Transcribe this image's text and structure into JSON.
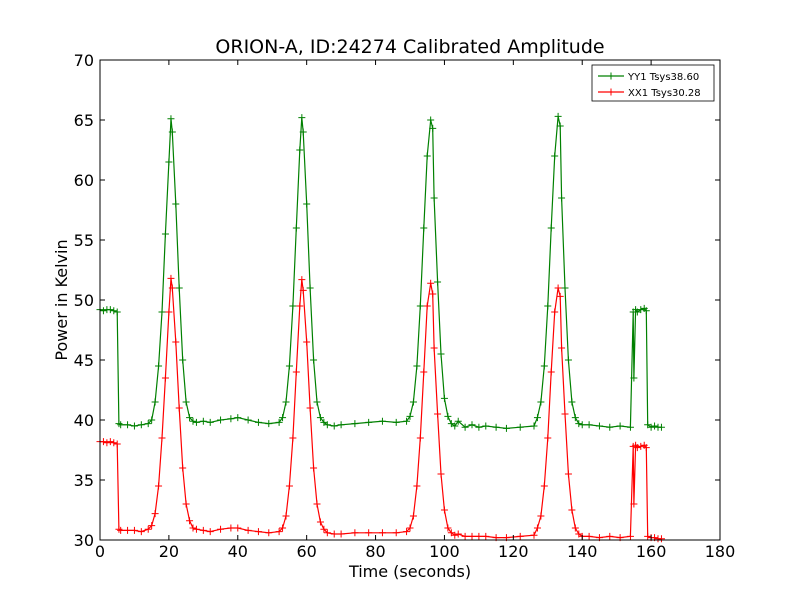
{
  "chart_data": {
    "type": "line",
    "title": "ORION-A, ID:24274 Calibrated Amplitude",
    "xlabel": "Time (seconds)",
    "ylabel": "Power in Kelvin",
    "xlim": [
      0,
      180
    ],
    "ylim": [
      30,
      70
    ],
    "xticks": [
      0,
      20,
      40,
      60,
      80,
      100,
      120,
      140,
      160,
      180
    ],
    "yticks": [
      30,
      35,
      40,
      45,
      50,
      55,
      60,
      65,
      70
    ],
    "grid": false,
    "legend_position": "top-right",
    "marker": "+",
    "series": [
      {
        "name": "YY1 Tsys38.60",
        "color": "#008000",
        "x": [
          0,
          1,
          2,
          3,
          4,
          5,
          5.5,
          6,
          8,
          10,
          12,
          14,
          15,
          16,
          17,
          18,
          19,
          20,
          20.6,
          21,
          22,
          23,
          24,
          25,
          26,
          27,
          28,
          30,
          32,
          35,
          38,
          40,
          43,
          46,
          49,
          52,
          53,
          54,
          55,
          56,
          57,
          58,
          58.6,
          59,
          60,
          61,
          62,
          63,
          64,
          65,
          66,
          68,
          70,
          74,
          78,
          82,
          86,
          89,
          90,
          91,
          92,
          93,
          94,
          95,
          96,
          96.6,
          97,
          98,
          99,
          100,
          101,
          102,
          103,
          104,
          106,
          108,
          110,
          112,
          115,
          118,
          122,
          126,
          127,
          128,
          129,
          130,
          131,
          132,
          133,
          133.6,
          134,
          135,
          136,
          137,
          138,
          139,
          140,
          142,
          145,
          148,
          151,
          154,
          154.8,
          155,
          155.5,
          156,
          157,
          158,
          158.6,
          159,
          160,
          161,
          162,
          163
        ],
        "y": [
          49.2,
          49.1,
          49.2,
          49.2,
          49.1,
          49.0,
          39.7,
          39.6,
          39.6,
          39.5,
          39.6,
          39.7,
          40.0,
          41.5,
          44.5,
          49.0,
          55.5,
          61.5,
          65.1,
          64.0,
          58.0,
          51.0,
          45.0,
          41.5,
          40.2,
          39.9,
          39.8,
          39.9,
          39.8,
          40.0,
          40.1,
          40.2,
          40.0,
          39.8,
          39.7,
          39.8,
          40.2,
          41.5,
          44.5,
          49.5,
          56.0,
          62.5,
          65.2,
          64.0,
          58.0,
          51.0,
          45.0,
          41.5,
          40.2,
          39.8,
          39.6,
          39.5,
          39.6,
          39.7,
          39.8,
          39.9,
          39.8,
          39.9,
          40.3,
          41.5,
          44.5,
          49.5,
          56.0,
          62.0,
          65.0,
          64.3,
          58.5,
          51.5,
          45.5,
          41.8,
          40.3,
          39.7,
          39.5,
          39.9,
          39.4,
          39.6,
          39.4,
          39.5,
          39.4,
          39.3,
          39.4,
          39.5,
          40.2,
          41.5,
          44.5,
          49.5,
          56.0,
          62.0,
          65.3,
          64.5,
          58.5,
          51.0,
          45.0,
          41.5,
          40.2,
          39.7,
          39.6,
          39.6,
          39.5,
          39.4,
          39.5,
          39.4,
          49.0,
          43.5,
          49.2,
          49.0,
          49.2,
          49.3,
          49.1,
          39.6,
          39.4,
          39.5,
          39.4,
          39.4
        ],
        "name_note": ""
      },
      {
        "name": "XX1 Tsys30.28",
        "color": "#ff0000",
        "x": [
          0,
          1,
          2,
          3,
          4,
          5,
          5.5,
          6,
          8,
          10,
          12,
          14,
          15,
          16,
          17,
          18,
          19,
          20,
          20.6,
          21,
          22,
          23,
          24,
          25,
          26,
          27,
          28,
          30,
          32,
          35,
          38,
          40,
          43,
          46,
          49,
          52,
          53,
          54,
          55,
          56,
          57,
          58,
          58.6,
          59,
          60,
          61,
          62,
          63,
          64,
          65,
          66,
          68,
          70,
          74,
          78,
          82,
          86,
          89,
          90,
          91,
          92,
          93,
          94,
          95,
          96,
          96.6,
          97,
          98,
          99,
          100,
          101,
          102,
          103,
          104,
          106,
          108,
          110,
          112,
          115,
          118,
          122,
          126,
          127,
          128,
          129,
          130,
          131,
          132,
          133,
          133.6,
          134,
          135,
          136,
          137,
          138,
          139,
          140,
          142,
          145,
          148,
          151,
          154,
          154.8,
          155,
          155.5,
          156,
          157,
          158,
          158.6,
          159,
          160,
          161,
          162,
          163
        ],
        "y": [
          38.2,
          38.2,
          38.1,
          38.2,
          38.1,
          38.0,
          30.9,
          30.8,
          30.8,
          30.8,
          30.7,
          30.9,
          31.2,
          32.2,
          34.5,
          38.5,
          43.5,
          49.0,
          51.8,
          51.0,
          46.5,
          41.0,
          36.0,
          33.0,
          31.6,
          31.0,
          30.9,
          30.8,
          30.7,
          30.9,
          31.0,
          31.0,
          30.8,
          30.7,
          30.6,
          30.7,
          31.0,
          32.0,
          34.5,
          38.5,
          44.0,
          49.5,
          51.7,
          50.8,
          46.5,
          41.0,
          36.0,
          33.0,
          31.5,
          30.9,
          30.6,
          30.5,
          30.5,
          30.6,
          30.6,
          30.6,
          30.6,
          30.7,
          31.0,
          32.0,
          34.5,
          38.5,
          44.0,
          49.5,
          51.4,
          50.5,
          46.0,
          40.5,
          35.5,
          32.5,
          31.0,
          30.6,
          30.4,
          30.5,
          30.3,
          30.3,
          30.3,
          30.3,
          30.2,
          30.2,
          30.3,
          30.4,
          31.0,
          32.0,
          34.5,
          38.5,
          44.0,
          49.0,
          51.0,
          50.3,
          46.0,
          40.5,
          35.5,
          32.5,
          31.0,
          30.5,
          30.3,
          30.3,
          30.2,
          30.3,
          30.2,
          30.3,
          37.8,
          33.0,
          37.9,
          37.7,
          37.8,
          37.9,
          37.7,
          30.3,
          30.2,
          30.2,
          30.1,
          30.1
        ]
      }
    ]
  }
}
